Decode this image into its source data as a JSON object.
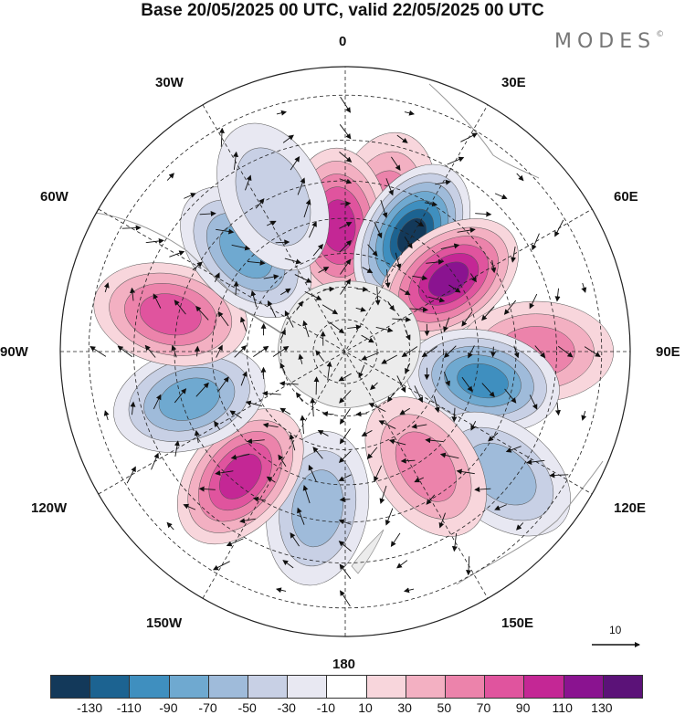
{
  "title": "Base 20/05/2025 00 UTC, valid 22/05/2025 00 UTC",
  "brand": "MODES",
  "brand_mark": "©",
  "longitude_labels": {
    "top": "0",
    "e30": "30E",
    "e60": "60E",
    "e90": "90E",
    "e120": "120E",
    "e150": "150E",
    "bottom": "180",
    "w150": "150W",
    "w120": "120W",
    "w90": "90W",
    "w60": "60W",
    "w30": "30W"
  },
  "reference_vector": "10",
  "colorbar": {
    "colors": [
      "#13395a",
      "#1c6391",
      "#3f8fbf",
      "#6fa9d0",
      "#9fbbda",
      "#c8d0e5",
      "#e8e8f2",
      "#ffffff",
      "#f8d6dc",
      "#f3b0c2",
      "#ec83ab",
      "#e0549e",
      "#c42795",
      "#8a1390",
      "#5b1278"
    ],
    "labels": [
      "-130",
      "-110",
      "-90",
      "-70",
      "-50",
      "-30",
      "-10",
      "10",
      "30",
      "50",
      "70",
      "90",
      "110",
      "130"
    ]
  },
  "map": {
    "projection": "south-polar-stereographic",
    "field": "anomaly",
    "land_color": "#ececec",
    "anomalies": [
      {
        "kind": "positive",
        "level": 3,
        "lon": 15,
        "lat": -46
      },
      {
        "kind": "positive",
        "level": 5,
        "lon": -3,
        "lat": -52
      },
      {
        "kind": "negative",
        "level": 7,
        "lon": 30,
        "lat": -50
      },
      {
        "kind": "positive",
        "level": 6,
        "lon": 55,
        "lat": -52
      },
      {
        "kind": "positive",
        "level": 3,
        "lon": 90,
        "lat": -35
      },
      {
        "kind": "negative",
        "level": 5,
        "lon": 102,
        "lat": -48
      },
      {
        "kind": "negative",
        "level": 3,
        "lon": 128,
        "lat": -33
      },
      {
        "kind": "positive",
        "level": 3,
        "lon": 145,
        "lat": -48
      },
      {
        "kind": "negative",
        "level": 3,
        "lon": -170,
        "lat": -43
      },
      {
        "kind": "positive",
        "level": 5,
        "lon": -140,
        "lat": -42
      },
      {
        "kind": "negative",
        "level": 4,
        "lon": -107,
        "lat": -42
      },
      {
        "kind": "positive",
        "level": 4,
        "lon": -78,
        "lat": -38
      },
      {
        "kind": "negative",
        "level": 4,
        "lon": -45,
        "lat": -48
      },
      {
        "kind": "negative",
        "level": 2,
        "lon": -25,
        "lat": -40
      }
    ]
  }
}
